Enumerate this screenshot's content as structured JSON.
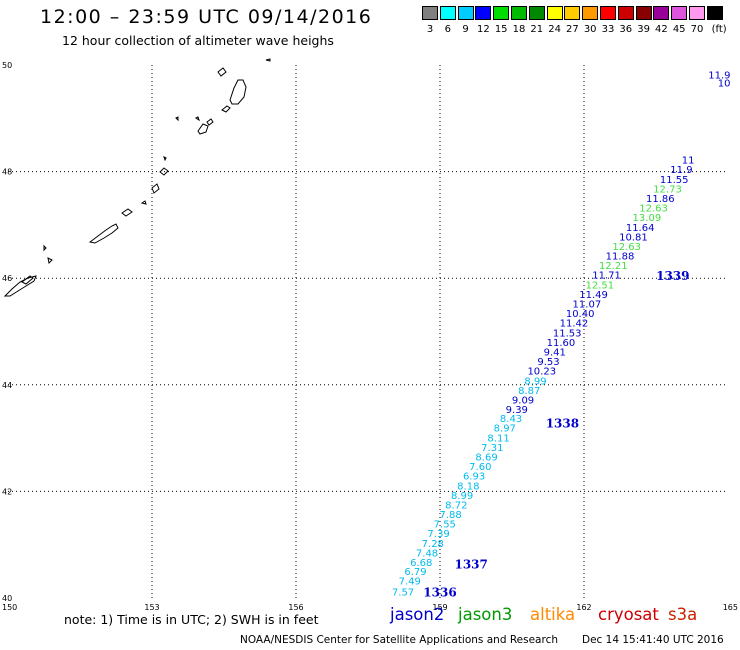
{
  "header": {
    "title": "12:00 – 23:59 UTC 09/14/2016",
    "subtitle": "12 hour collection of altimeter wave heighs"
  },
  "colorbar": {
    "unit": "(ft)",
    "bins": [
      {
        "label": "3",
        "color": "#808080"
      },
      {
        "label": "6",
        "color": "#00ffff"
      },
      {
        "label": "9",
        "color": "#00ccff"
      },
      {
        "label": "12",
        "color": "#0000ff"
      },
      {
        "label": "15",
        "color": "#00dd00"
      },
      {
        "label": "18",
        "color": "#00bb00"
      },
      {
        "label": "21",
        "color": "#008800"
      },
      {
        "label": "24",
        "color": "#ffff00"
      },
      {
        "label": "27",
        "color": "#ffcc00"
      },
      {
        "label": "30",
        "color": "#ff9900"
      },
      {
        "label": "33",
        "color": "#ff0000"
      },
      {
        "label": "36",
        "color": "#cc0000"
      },
      {
        "label": "39",
        "color": "#880000"
      },
      {
        "label": "42",
        "color": "#990099"
      },
      {
        "label": "45",
        "color": "#dd55dd"
      },
      {
        "label": "70",
        "color": "#ff99ee"
      },
      {
        "label": "",
        "color": "#000000"
      }
    ]
  },
  "map": {
    "lon_labels": [
      "150",
      "153",
      "156",
      "159",
      "162",
      "165"
    ],
    "lat_labels": [
      "50",
      "48",
      "46",
      "44",
      "42",
      "40"
    ],
    "lon_range": [
      150,
      165
    ],
    "lat_range": [
      40,
      50
    ],
    "gridline_style": "dotted"
  },
  "swh_readings": [
    {
      "v": "7.57",
      "lat": 40.05,
      "lon": 158.23,
      "c": "#00bbee"
    },
    {
      "v": "7.49",
      "lat": 40.25,
      "lon": 158.37,
      "c": "#00bbee"
    },
    {
      "v": "6.79",
      "lat": 40.43,
      "lon": 158.49,
      "c": "#00bbee"
    },
    {
      "v": "6.68",
      "lat": 40.6,
      "lon": 158.61,
      "c": "#00bbee"
    },
    {
      "v": "7.48",
      "lat": 40.78,
      "lon": 158.73,
      "c": "#00bbee"
    },
    {
      "v": "7.28",
      "lat": 40.96,
      "lon": 158.85,
      "c": "#00bbee"
    },
    {
      "v": "7.39",
      "lat": 41.14,
      "lon": 158.97,
      "c": "#00bbee"
    },
    {
      "v": "7.55",
      "lat": 41.32,
      "lon": 159.1,
      "c": "#00bbee"
    },
    {
      "v": "7.88",
      "lat": 41.5,
      "lon": 159.22,
      "c": "#00bbee"
    },
    {
      "v": "8.72",
      "lat": 41.68,
      "lon": 159.34,
      "c": "#00bbee"
    },
    {
      "v": "8.99",
      "lat": 41.86,
      "lon": 159.46,
      "c": "#00bbee"
    },
    {
      "v": "8.18",
      "lat": 42.04,
      "lon": 159.59,
      "c": "#00bbee"
    },
    {
      "v": "6.93",
      "lat": 42.22,
      "lon": 159.71,
      "c": "#00bbee"
    },
    {
      "v": "7.60",
      "lat": 42.4,
      "lon": 159.84,
      "c": "#00bbee"
    },
    {
      "v": "8.69",
      "lat": 42.58,
      "lon": 159.97,
      "c": "#00bbee"
    },
    {
      "v": "7.31",
      "lat": 42.76,
      "lon": 160.09,
      "c": "#00bbee"
    },
    {
      "v": "8.11",
      "lat": 42.94,
      "lon": 160.22,
      "c": "#00bbee"
    },
    {
      "v": "8.97",
      "lat": 43.12,
      "lon": 160.35,
      "c": "#00bbee"
    },
    {
      "v": "8.43",
      "lat": 43.3,
      "lon": 160.48,
      "c": "#00bbee"
    },
    {
      "v": "9.39",
      "lat": 43.47,
      "lon": 160.6,
      "c": "#0000cc"
    },
    {
      "v": "9.09",
      "lat": 43.65,
      "lon": 160.73,
      "c": "#0000cc"
    },
    {
      "v": "8.87",
      "lat": 43.83,
      "lon": 160.86,
      "c": "#00bbee"
    },
    {
      "v": "8.99",
      "lat": 44.01,
      "lon": 160.99,
      "c": "#00bbee"
    },
    {
      "v": "10.23",
      "lat": 44.19,
      "lon": 161.12,
      "c": "#0000cc"
    },
    {
      "v": "9.53",
      "lat": 44.37,
      "lon": 161.26,
      "c": "#0000cc"
    },
    {
      "v": "9.41",
      "lat": 44.55,
      "lon": 161.39,
      "c": "#0000cc"
    },
    {
      "v": "11.60",
      "lat": 44.73,
      "lon": 161.52,
      "c": "#0000cc"
    },
    {
      "v": "11.53",
      "lat": 44.91,
      "lon": 161.65,
      "c": "#0000cc"
    },
    {
      "v": "11.42",
      "lat": 45.09,
      "lon": 161.79,
      "c": "#0000cc"
    },
    {
      "v": "10.40",
      "lat": 45.27,
      "lon": 161.92,
      "c": "#0000cc"
    },
    {
      "v": "11.07",
      "lat": 45.45,
      "lon": 162.06,
      "c": "#0000cc"
    },
    {
      "v": "11.49",
      "lat": 45.63,
      "lon": 162.2,
      "c": "#0000cc"
    },
    {
      "v": "12.51",
      "lat": 45.81,
      "lon": 162.33,
      "c": "#44dd44"
    },
    {
      "v": "11.71",
      "lat": 45.99,
      "lon": 162.47,
      "c": "#0000cc"
    },
    {
      "v": "12.21",
      "lat": 46.17,
      "lon": 162.61,
      "c": "#44dd44"
    },
    {
      "v": "11.88",
      "lat": 46.35,
      "lon": 162.75,
      "c": "#0000cc"
    },
    {
      "v": "12.63",
      "lat": 46.53,
      "lon": 162.89,
      "c": "#44dd44"
    },
    {
      "v": "10.81",
      "lat": 46.71,
      "lon": 163.03,
      "c": "#0000cc"
    },
    {
      "v": "11.64",
      "lat": 46.89,
      "lon": 163.17,
      "c": "#0000cc"
    },
    {
      "v": "13.09",
      "lat": 47.07,
      "lon": 163.31,
      "c": "#44dd44"
    },
    {
      "v": "12.63",
      "lat": 47.25,
      "lon": 163.45,
      "c": "#44dd44"
    },
    {
      "v": "11.86",
      "lat": 47.43,
      "lon": 163.59,
      "c": "#0000cc"
    },
    {
      "v": "12.73",
      "lat": 47.61,
      "lon": 163.74,
      "c": "#44dd44"
    },
    {
      "v": "11.55",
      "lat": 47.79,
      "lon": 163.88,
      "c": "#0000cc"
    },
    {
      "v": "11.9",
      "lat": 47.97,
      "lon": 164.03,
      "c": "#0000cc"
    },
    {
      "v": "11",
      "lat": 48.15,
      "lon": 164.17,
      "c": "#0000cc"
    },
    {
      "v": "10",
      "lat": 49.6,
      "lon": 164.92,
      "c": "#0000cc"
    },
    {
      "v": "11.9",
      "lat": 49.75,
      "lon": 164.82,
      "c": "#0000cc"
    }
  ],
  "pass_labels": [
    {
      "v": "1336",
      "lat": 40.03,
      "lon": 159.0
    },
    {
      "v": "1337",
      "lat": 40.55,
      "lon": 159.65
    },
    {
      "v": "1338",
      "lat": 43.2,
      "lon": 161.55
    },
    {
      "v": "1339",
      "lat": 45.97,
      "lon": 163.85
    }
  ],
  "footer": {
    "note": "note:  1) Time is in UTC;  2) SWH is in feet",
    "satellites": [
      {
        "name": "jason2",
        "color": "#0000cc"
      },
      {
        "name": "jason3",
        "color": "#009900"
      },
      {
        "name": "altika",
        "color": "#ff8800"
      },
      {
        "name": "cryosat",
        "color": "#cc0000"
      },
      {
        "name": "s3a",
        "color": "#cc2200"
      }
    ],
    "credit": "NOAA/NESDIS Center for Satellite Applications and Research",
    "timestamp": "Dec 14 15:41:40 UTC 2016"
  }
}
